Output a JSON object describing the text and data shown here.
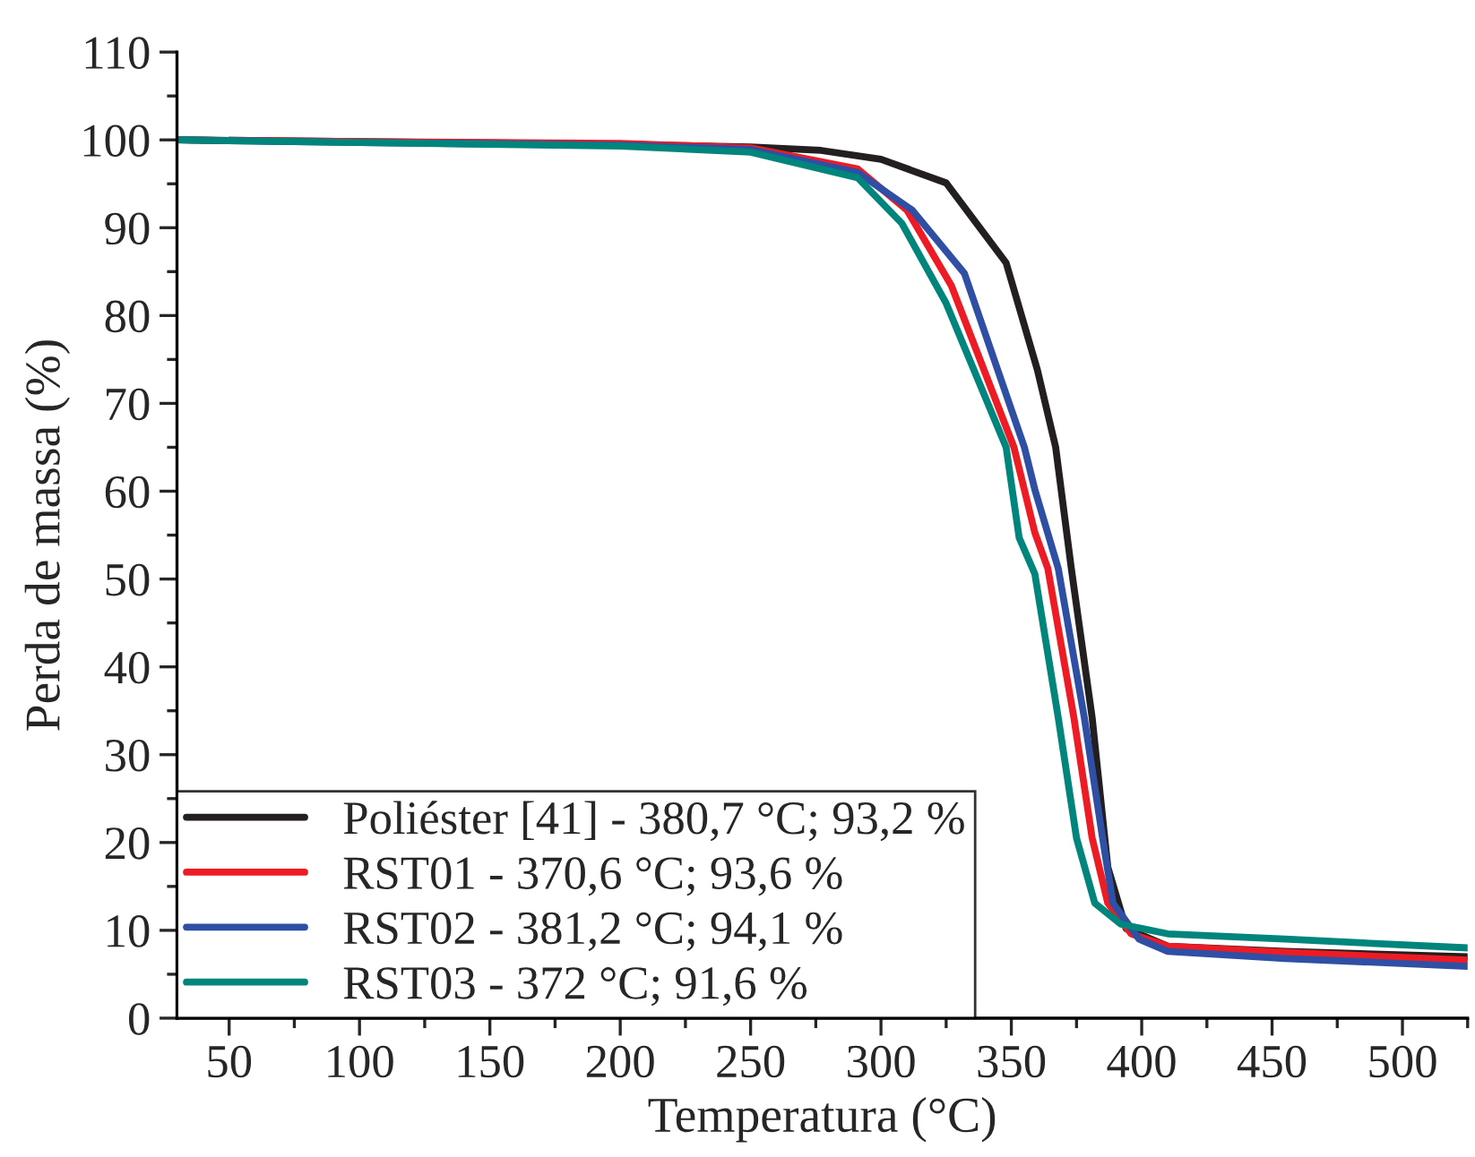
{
  "chart_data": {
    "type": "line",
    "xlabel": "Temperatura (°C)",
    "ylabel": "Perda de massa (%)",
    "xlim": [
      30,
      525
    ],
    "xticks": [
      50,
      100,
      150,
      200,
      250,
      300,
      350,
      400,
      450,
      500
    ],
    "ylim": [
      0,
      110
    ],
    "yticks": [
      0,
      10,
      20,
      30,
      40,
      50,
      60,
      70,
      80,
      90,
      100,
      110
    ],
    "grid": false,
    "legend": "bottom left",
    "marker": "none",
    "line_style": "solid",
    "series": [
      {
        "name": "Poliéster [41] - 380,7 °C; 93,2 %",
        "color": "#231f20",
        "x": [
          30,
          100,
          200,
          250,
          277,
          300,
          325,
          348,
          360,
          367,
          373,
          381,
          387,
          394,
          410,
          455,
          525
        ],
        "values": [
          100,
          99.8,
          99.5,
          99.2,
          98.8,
          97.8,
          95.1,
          86,
          73.8,
          65,
          51.2,
          34.2,
          17.2,
          10.2,
          8.2,
          7.6,
          7.0
        ]
      },
      {
        "name": "RST01 - 370,6 °C; 93,6 %",
        "color": "#ed1c24",
        "x": [
          30,
          100,
          200,
          250,
          291,
          310,
          327,
          351,
          359,
          364,
          374,
          381,
          387,
          396,
          410,
          455,
          525
        ],
        "values": [
          100,
          99.8,
          99.6,
          99.1,
          96.7,
          92,
          83.4,
          65,
          55.3,
          51.2,
          34.2,
          20.5,
          13.1,
          9.6,
          8.2,
          7.5,
          6.6
        ]
      },
      {
        "name": "RST02 - 381,2 °C; 94,1 %",
        "color": "#2e4fa3",
        "x": [
          30,
          100,
          200,
          250,
          291,
          312,
          332,
          355,
          359,
          368,
          378,
          385,
          389,
          399,
          410,
          455,
          525
        ],
        "values": [
          100,
          99.7,
          99.4,
          98.9,
          96.3,
          92,
          84.8,
          65,
          60.2,
          51.2,
          34.2,
          20.5,
          13.1,
          9.0,
          7.6,
          6.8,
          5.9
        ]
      },
      {
        "name": "RST03 - 372 °C; 91,6 %",
        "color": "#00857c",
        "x": [
          30,
          100,
          200,
          250,
          291,
          308,
          325,
          348,
          353,
          359,
          368,
          375,
          382,
          392,
          410,
          455,
          525
        ],
        "values": [
          100,
          99.7,
          99.3,
          98.6,
          95.7,
          90.5,
          81.4,
          65,
          54.7,
          50.6,
          34.2,
          20.5,
          13.1,
          10.7,
          9.6,
          9.0,
          8.0
        ]
      }
    ]
  }
}
